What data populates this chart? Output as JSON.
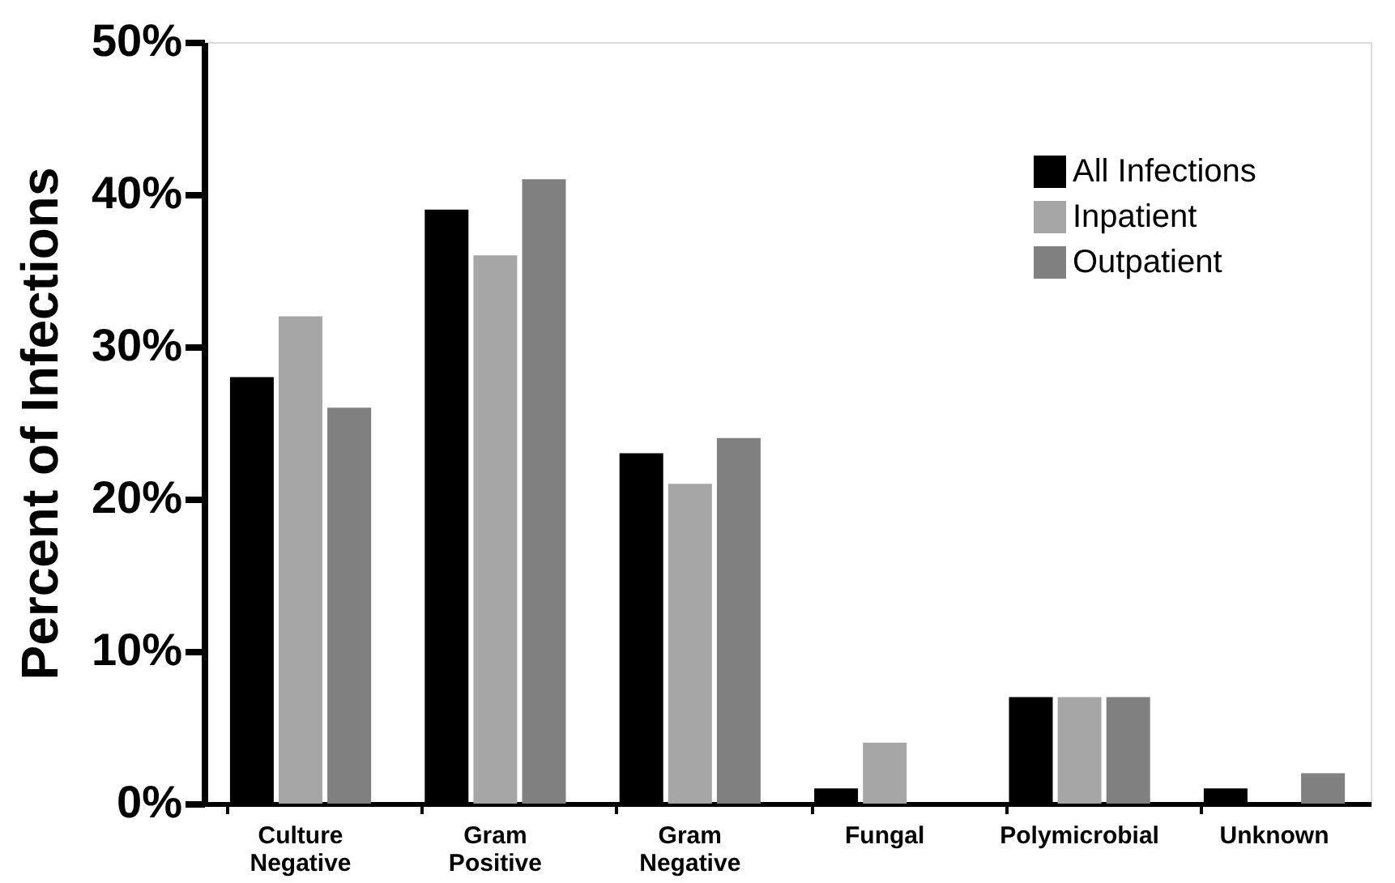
{
  "chart_data": {
    "type": "bar",
    "ylabel": "Percent of Infections",
    "categories": [
      "Culture Negative",
      "Gram Positive",
      "Gram Negative",
      "Fungal",
      "Polymicrobial",
      "Unknown"
    ],
    "series": [
      {
        "name": "All Infections",
        "color": "#000000",
        "values": [
          28,
          39,
          23,
          1,
          7,
          1
        ]
      },
      {
        "name": "Inpatient",
        "color": "#a6a6a6",
        "values": [
          32,
          36,
          21,
          4,
          7,
          0
        ]
      },
      {
        "name": "Outpatient",
        "color": "#808080",
        "values": [
          26,
          41,
          24,
          0,
          7,
          2
        ]
      }
    ],
    "ylim": [
      0,
      50
    ],
    "yticks": [
      {
        "value": 0,
        "label": "0%"
      },
      {
        "value": 10,
        "label": "10%"
      },
      {
        "value": 20,
        "label": "20%"
      },
      {
        "value": 30,
        "label": "30%"
      },
      {
        "value": 40,
        "label": "40%"
      },
      {
        "value": 50,
        "label": "50%"
      }
    ],
    "legend": "top right",
    "grid": false
  }
}
